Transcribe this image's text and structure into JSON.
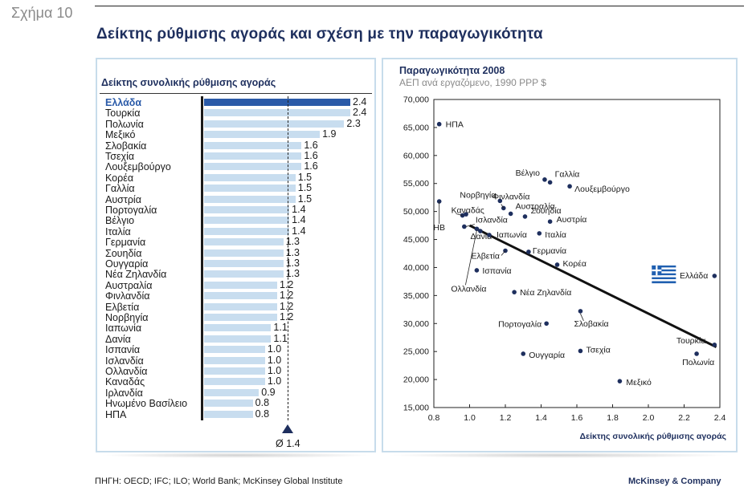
{
  "figure_number": "Σχήμα 10",
  "main_title": "Δείκτης ρύθμισης αγοράς και σχέση με την παραγωγικότητα",
  "chart_data": [
    {
      "type": "bar",
      "title": "Δείκτης συνολικής ρύθμισης αγοράς",
      "orientation": "horizontal",
      "highlight": "Ελλάδα",
      "highlight_color": "#2a5aa8",
      "bar_color": "#c8ddef",
      "xlim": [
        0,
        2.4
      ],
      "average": 1.4,
      "average_label": "Ø 1.4",
      "categories": [
        "Ελλάδα",
        "Τουρκία",
        "Πολωνία",
        "Μεξικό",
        "Σλοβακία",
        "Τσεχία",
        "Λουξεμβούργο",
        "Κορέα",
        "Γαλλία",
        "Αυστρία",
        "Πορτογαλία",
        "Βέλγιο",
        "Ιταλία",
        "Γερμανία",
        "Σουηδία",
        "Ουγγαρία",
        "Νέα Ζηλανδία",
        "Αυστραλία",
        "Φινλανδία",
        "Ελβετία",
        "Νορβηγία",
        "Ιαπωνία",
        "Δανία",
        "Ισπανία",
        "Ισλανδία",
        "Ολλανδία",
        "Καναδάς",
        "Ιρλανδία",
        "Ηνωμένο Βασίλειο",
        "ΗΠΑ"
      ],
      "values": [
        2.4,
        2.4,
        2.3,
        1.9,
        1.6,
        1.6,
        1.6,
        1.5,
        1.5,
        1.5,
        1.4,
        1.4,
        1.4,
        1.3,
        1.3,
        1.3,
        1.3,
        1.2,
        1.2,
        1.2,
        1.2,
        1.1,
        1.1,
        1.0,
        1.0,
        1.0,
        1.0,
        0.9,
        0.8,
        0.8
      ],
      "value_labels": [
        "2.4",
        "2.4",
        "2.3",
        "1.9",
        "1.6",
        "1.6",
        "1.6",
        "1.5",
        "1.5",
        "1.5",
        "1.4",
        "1.4",
        "1.4",
        "1.3",
        "1.3",
        "1.3",
        "1.3",
        "1.2",
        "1.2",
        "1.2",
        "1.2",
        "1.1",
        "1.1",
        "1.0",
        "1.0",
        "1.0",
        "1.0",
        "0.9",
        "0.8",
        "0.8"
      ]
    },
    {
      "type": "scatter",
      "title": "Παραγωγικότητα 2008",
      "subtitle": "ΑΕΠ ανά εργαζόμενο, 1990 PPP $",
      "xlabel": "Δείκτης συνολικής ρύθμισης αγοράς",
      "ylabel": "",
      "xlim": [
        0.8,
        2.4
      ],
      "ylim": [
        15000,
        70000
      ],
      "x_ticks": [
        "0.8",
        "1.0",
        "1.2",
        "1.4",
        "1.6",
        "1.8",
        "2.0",
        "2.2",
        "2.4"
      ],
      "y_ticks": [
        "15,000",
        "20,000",
        "25,000",
        "30,000",
        "35,000",
        "40,000",
        "45,000",
        "50,000",
        "55,000",
        "60,000",
        "65,000",
        "70,000"
      ],
      "trendline": {
        "x": [
          1.0,
          2.38
        ],
        "y": [
          47500,
          25800
        ]
      },
      "point_color": "#1e2f5e",
      "flag_icon": "greek-flag-icon",
      "points": [
        {
          "label": "ΗΠΑ",
          "x": 0.83,
          "y": 65600
        },
        {
          "label": "Βέλγιο",
          "x": 1.42,
          "y": 55700
        },
        {
          "label": "Γαλλία",
          "x": 1.45,
          "y": 55200
        },
        {
          "label": "Λουξεμβούργο",
          "x": 1.56,
          "y": 54500
        },
        {
          "label": "Νορβηγία",
          "x": 1.17,
          "y": 51900
        },
        {
          "label": "Φινλανδία",
          "x": 1.19,
          "y": 50600
        },
        {
          "label": "Αυστραλία",
          "x": 1.23,
          "y": 49600
        },
        {
          "label": "Σουηδία",
          "x": 1.31,
          "y": 49100
        },
        {
          "label": "Αυστρία",
          "x": 1.45,
          "y": 48200
        },
        {
          "label": "ΗΒ",
          "x": 0.83,
          "y": 51800
        },
        {
          "label": "Καναδάς",
          "x": 0.96,
          "y": 49300
        },
        {
          "label": "Ισλανδία",
          "x": 0.97,
          "y": 47300
        },
        {
          "label": "Ιρλανδία",
          "x": 0.98,
          "y": 49500
        },
        {
          "label": "Ολλανδία",
          "x": 1.04,
          "y": 46900
        },
        {
          "label": "Δανία",
          "x": 1.06,
          "y": 46500
        },
        {
          "label": "Ιαπωνία",
          "x": 1.11,
          "y": 45800
        },
        {
          "label": "Ιταλία",
          "x": 1.39,
          "y": 46100
        },
        {
          "label": "Ελβετία",
          "x": 1.2,
          "y": 43000
        },
        {
          "label": "Γερμανία",
          "x": 1.33,
          "y": 42800
        },
        {
          "label": "Κορέα",
          "x": 1.49,
          "y": 40500
        },
        {
          "label": "Ισπανία",
          "x": 1.04,
          "y": 39500
        },
        {
          "label": "Ελλάδα",
          "x": 2.37,
          "y": 38500
        },
        {
          "label": "Νέα Ζηλανδία",
          "x": 1.25,
          "y": 35600
        },
        {
          "label": "Σλοβακία",
          "x": 1.62,
          "y": 32200
        },
        {
          "label": "Πορτογαλία",
          "x": 1.43,
          "y": 30000
        },
        {
          "label": "Τουρκία",
          "x": 2.37,
          "y": 26200
        },
        {
          "label": "Πολωνία",
          "x": 2.27,
          "y": 24600
        },
        {
          "label": "Ουγγαρία",
          "x": 1.3,
          "y": 24600
        },
        {
          "label": "Τσεχία",
          "x": 1.62,
          "y": 25100
        },
        {
          "label": "Μεξικό",
          "x": 1.84,
          "y": 19700
        }
      ]
    }
  ],
  "footer": {
    "source": "ΠΗΓΗ: OECD; IFC; ILO; World Bank; McKinsey Global Institute",
    "brand": "McKinsey & Company"
  }
}
